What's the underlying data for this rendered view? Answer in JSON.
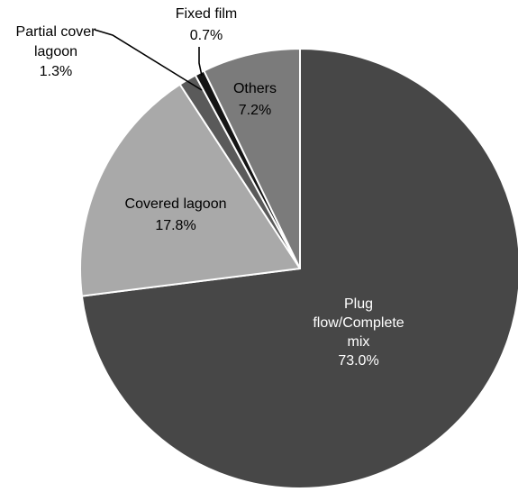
{
  "chart_data": {
    "type": "pie",
    "title": "",
    "start": "top, clockwise",
    "slices": [
      {
        "label": "Plug flow/Complete mix",
        "label_lines": [
          "Plug",
          "flow/Complete",
          "mix"
        ],
        "value": 73.0,
        "value_text": "73.0%",
        "color": "#474747",
        "text_color": "#ffffff"
      },
      {
        "label": "Covered lagoon",
        "label_lines": [
          "Covered lagoon"
        ],
        "value": 17.8,
        "value_text": "17.8%",
        "color": "#a9a9a9",
        "text_color": "#000000"
      },
      {
        "label": "Partial cover lagoon",
        "label_lines": [
          "Partial cover",
          "lagoon"
        ],
        "value": 1.3,
        "value_text": "1.3%",
        "color": "#5a5a5a",
        "text_color": "#000000"
      },
      {
        "label": "Fixed film",
        "label_lines": [
          "Fixed film"
        ],
        "value": 0.7,
        "value_text": "0.7%",
        "color": "#151515",
        "text_color": "#000000"
      },
      {
        "label": "Others",
        "label_lines": [
          "Others"
        ],
        "value": 7.2,
        "value_text": "7.2%",
        "color": "#7b7b7b",
        "text_color": "#000000"
      }
    ]
  }
}
